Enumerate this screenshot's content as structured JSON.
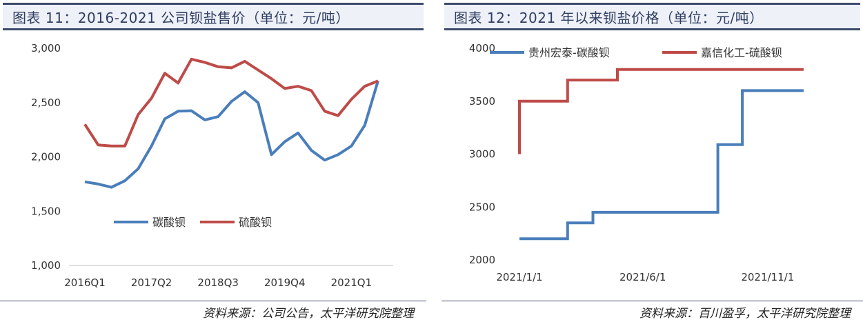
{
  "charts": {
    "left": {
      "title": "图表 11：2016-2021 公司钡盐售价（单位：元/吨）",
      "source": "资料来源：公司公告，太平洋研究院整理"
    },
    "right": {
      "title": "图表 12：2021 年以来钡盐价格（单位：元/吨）",
      "source": "资料来源：百川盈孚，太平洋研究院整理"
    }
  },
  "colors": {
    "blue": "#4a7ebb",
    "red": "#be4b48",
    "title_bg": "#eef1f7",
    "title_border": "#3b4a6b"
  },
  "chart_data": [
    {
      "type": "line",
      "title": "图表 11：2016-2021 公司钡盐售价（单位：元/吨）",
      "xlabel": "",
      "ylabel": "",
      "ylim": [
        1000,
        3000
      ],
      "yticks": [
        1000,
        1500,
        2000,
        2500,
        3000
      ],
      "ytick_labels": [
        "1,000",
        "1,500",
        "2,000",
        "2,500",
        "3,000"
      ],
      "categories": [
        "2016Q1",
        "2016Q2",
        "2016Q3",
        "2016Q4",
        "2017Q1",
        "2017Q2",
        "2017Q3",
        "2017Q4",
        "2018Q1",
        "2018Q2",
        "2018Q3",
        "2018Q4",
        "2019Q1",
        "2019Q2",
        "2019Q3",
        "2019Q4",
        "2020Q1",
        "2020Q2",
        "2020Q3",
        "2020Q4",
        "2021Q1",
        "2021Q2",
        "2021Q3"
      ],
      "xtick_labels": [
        "2016Q1",
        "2017Q2",
        "2018Q3",
        "2019Q4",
        "2021Q1"
      ],
      "xtick_indices": [
        0,
        5,
        10,
        15,
        20
      ],
      "legend": "center-left",
      "series": [
        {
          "name": "碳酸钡",
          "color": "#4a7ebb",
          "values": [
            1770,
            1750,
            1720,
            1780,
            1890,
            2100,
            2350,
            2420,
            2425,
            2340,
            2370,
            2510,
            2600,
            2500,
            2020,
            2140,
            2220,
            2060,
            1970,
            2020,
            2100,
            2290,
            2700
          ]
        },
        {
          "name": "硫酸钡",
          "color": "#be4b48",
          "values": [
            2300,
            2110,
            2100,
            2100,
            2390,
            2540,
            2770,
            2680,
            2900,
            2870,
            2830,
            2820,
            2880,
            2800,
            2720,
            2630,
            2650,
            2610,
            2420,
            2380,
            2530,
            2650,
            2700
          ]
        }
      ]
    },
    {
      "type": "line",
      "title": "图表 12：2021 年以来钡盐价格（单位：元/吨）",
      "xlabel": "",
      "ylabel": "",
      "ylim": [
        2000,
        4000
      ],
      "yticks": [
        2000,
        2500,
        3000,
        3500,
        4000
      ],
      "ytick_labels": [
        "2000",
        "2500",
        "3000",
        "3500",
        "4000"
      ],
      "x_range": [
        "2021-01-01",
        "2022-01-01"
      ],
      "xtick_labels": [
        "2021/1/1",
        "2021/6/1",
        "2021/11/1"
      ],
      "xticks": [
        "2021-01-01",
        "2021-06-01",
        "2021-11-01"
      ],
      "legend": "top",
      "series": [
        {
          "name": "贵州宏泰-碳酸钡",
          "color": "#4a7ebb",
          "step": true,
          "points": [
            [
              "2021-01-01",
              2200
            ],
            [
              "2021-03-01",
              2200
            ],
            [
              "2021-03-01",
              2350
            ],
            [
              "2021-04-01",
              2350
            ],
            [
              "2021-04-01",
              2450
            ],
            [
              "2021-09-01",
              2450
            ],
            [
              "2021-09-01",
              3090
            ],
            [
              "2021-10-01",
              3090
            ],
            [
              "2021-10-01",
              3600
            ],
            [
              "2021-12-15",
              3600
            ]
          ]
        },
        {
          "name": "嘉信化工-硫酸钡",
          "color": "#be4b48",
          "step": true,
          "points": [
            [
              "2021-01-01",
              3000
            ],
            [
              "2021-01-01",
              3500
            ],
            [
              "2021-03-01",
              3500
            ],
            [
              "2021-03-01",
              3700
            ],
            [
              "2021-05-01",
              3700
            ],
            [
              "2021-05-01",
              3800
            ],
            [
              "2021-12-15",
              3800
            ]
          ]
        }
      ]
    }
  ]
}
